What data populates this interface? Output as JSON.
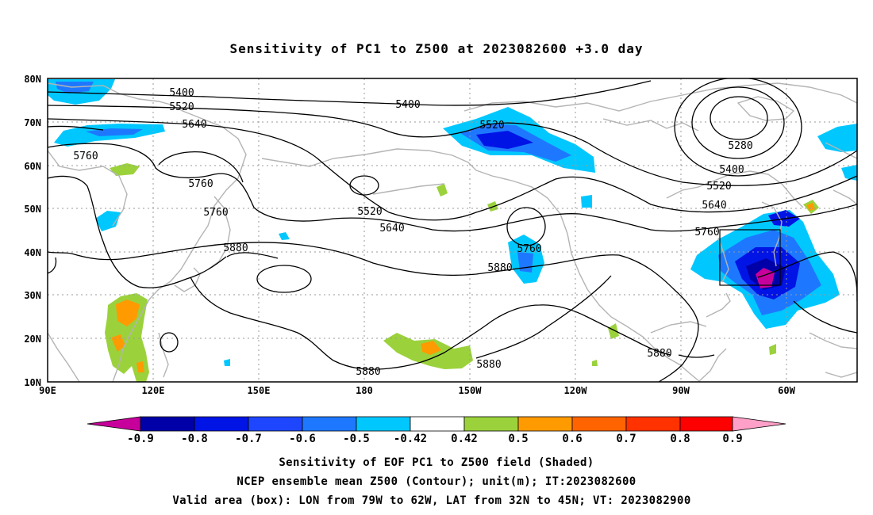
{
  "title": "Sensitivity of PC1 to Z500 at 2023082600 +3.0 day",
  "map": {
    "lat_ticks": [
      "80N",
      "70N",
      "60N",
      "50N",
      "40N",
      "30N",
      "20N",
      "10N"
    ],
    "lon_ticks": [
      "90E",
      "120E",
      "150E",
      "180",
      "150W",
      "120W",
      "90W",
      "60W"
    ],
    "contour_labels": [
      "5400",
      "5520",
      "5640",
      "5760",
      "5400",
      "5520",
      "5760",
      "5760",
      "5520",
      "5640",
      "5880",
      "5760",
      "5880",
      "5280",
      "5400",
      "5520",
      "5640",
      "5760",
      "5880",
      "5880",
      "5880"
    ],
    "valid_box": {
      "lon_from": "79W",
      "lon_to": "62W",
      "lat_from": "32N",
      "lat_to": "45N"
    }
  },
  "colorbar": {
    "labels": [
      "-0.9",
      "-0.8",
      "-0.7",
      "-0.6",
      "-0.5",
      "-0.42",
      "0.42",
      "0.5",
      "0.6",
      "0.7",
      "0.8",
      "0.9"
    ],
    "colors": [
      "#c8009b",
      "#0000a8",
      "#0014e6",
      "#1e46ff",
      "#1e78ff",
      "#00c8ff",
      "#ffffff",
      "#9bd23c",
      "#ff9b00",
      "#ff6400",
      "#ff3200",
      "#ff0000",
      "#ffa0c8"
    ]
  },
  "footer": {
    "line1": "Sensitivity of EOF PC1 to Z500 field (Shaded)",
    "line2": "NCEP ensemble mean Z500 (Contour); unit(m); IT:2023082600",
    "line3": "Valid area (box): LON from 79W to 62W, LAT from 32N to 45N; VT: 2023082900"
  }
}
